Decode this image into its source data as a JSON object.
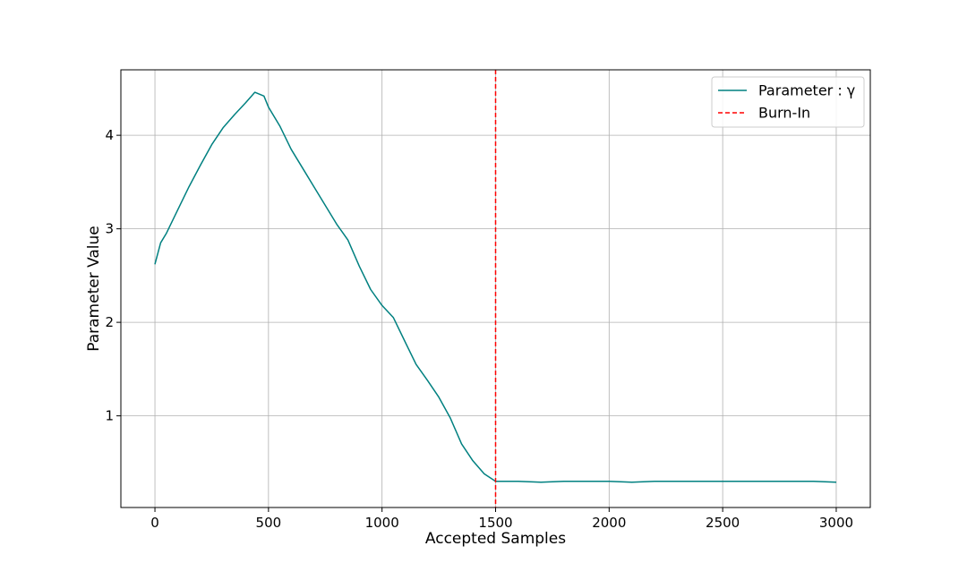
{
  "chart_data": {
    "type": "line",
    "title": "",
    "xlabel": "Accepted Samples",
    "ylabel": "Parameter Value",
    "xlim": [
      -150,
      3150
    ],
    "ylim": [
      0.02,
      4.7
    ],
    "xticks": [
      0,
      500,
      1000,
      1500,
      2000,
      2500,
      3000
    ],
    "xtick_labels": [
      "0",
      "500",
      "1000",
      "1500",
      "2000",
      "2500",
      "3000"
    ],
    "yticks": [
      1,
      2,
      3,
      4
    ],
    "ytick_labels": [
      "1",
      "2",
      "3",
      "4"
    ],
    "grid": true,
    "legend_position": "top-right",
    "series": [
      {
        "name": "Parameter : γ",
        "color": "#008080",
        "style": "solid",
        "x": [
          0,
          25,
          50,
          100,
          150,
          200,
          250,
          300,
          350,
          400,
          440,
          480,
          500,
          550,
          600,
          650,
          700,
          750,
          800,
          850,
          900,
          950,
          1000,
          1050,
          1100,
          1150,
          1200,
          1250,
          1300,
          1350,
          1400,
          1450,
          1500,
          1600,
          1700,
          1800,
          1900,
          2000,
          2100,
          2200,
          2300,
          2400,
          2500,
          2600,
          2700,
          2800,
          2900,
          3000
        ],
        "y": [
          2.62,
          2.85,
          2.95,
          3.2,
          3.45,
          3.68,
          3.9,
          4.08,
          4.22,
          4.35,
          4.46,
          4.42,
          4.3,
          4.1,
          3.85,
          3.65,
          3.45,
          3.25,
          3.05,
          2.88,
          2.6,
          2.35,
          2.18,
          2.05,
          1.8,
          1.55,
          1.38,
          1.2,
          0.98,
          0.7,
          0.52,
          0.38,
          0.3,
          0.3,
          0.29,
          0.3,
          0.3,
          0.3,
          0.29,
          0.3,
          0.3,
          0.3,
          0.3,
          0.3,
          0.3,
          0.3,
          0.3,
          0.29
        ]
      },
      {
        "name": "Burn-In",
        "color": "#ff0000",
        "style": "dashed",
        "x_value": 1500
      }
    ]
  }
}
